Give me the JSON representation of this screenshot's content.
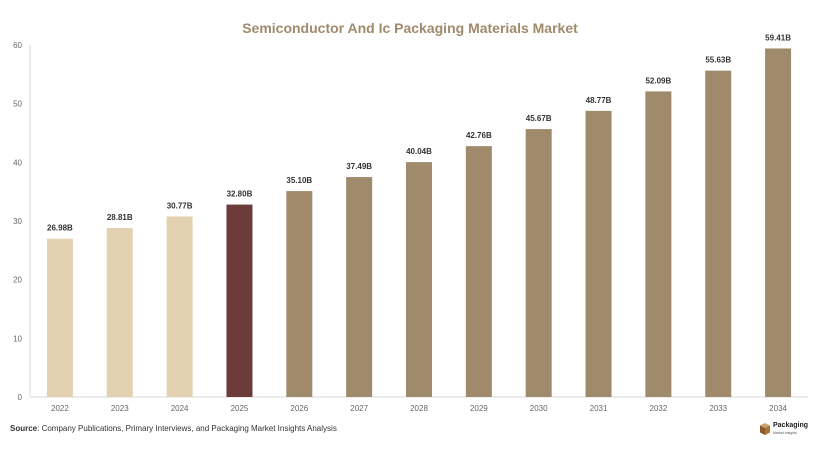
{
  "chart_data": {
    "type": "bar",
    "title": "Semiconductor And Ic Packaging Materials Market",
    "categories": [
      "2022",
      "2023",
      "2024",
      "2025",
      "2026",
      "2027",
      "2028",
      "2029",
      "2030",
      "2031",
      "2032",
      "2033",
      "2034"
    ],
    "values": [
      26.98,
      28.81,
      30.77,
      32.8,
      35.1,
      37.49,
      40.04,
      42.76,
      45.67,
      48.77,
      52.09,
      55.63,
      59.41
    ],
    "data_labels": [
      "26.98B",
      "28.81B",
      "30.77B",
      "32.80B",
      "35.10B",
      "37.49B",
      "40.04B",
      "42.76B",
      "45.67B",
      "48.77B",
      "52.09B",
      "55.63B",
      "59.41B"
    ],
    "ylim": [
      0,
      60
    ],
    "yticks": [
      0,
      10,
      20,
      30,
      40,
      50,
      60
    ],
    "xlabel": "",
    "ylabel": "",
    "grid": false,
    "colors": {
      "historical": "#e2d2b2",
      "current": "#6e3b3b",
      "forecast": "#a08a6c"
    },
    "bar_groups": [
      "historical",
      "historical",
      "historical",
      "current",
      "forecast",
      "forecast",
      "forecast",
      "forecast",
      "forecast",
      "forecast",
      "forecast",
      "forecast",
      "forecast"
    ]
  },
  "source": {
    "label": "Source",
    "text": ": Company Publications, Primary Interviews, and Packaging Market Insights Analysis"
  },
  "logo": {
    "title": "Packaging",
    "subtitle": "Market Insights",
    "icon": "box-icon"
  }
}
